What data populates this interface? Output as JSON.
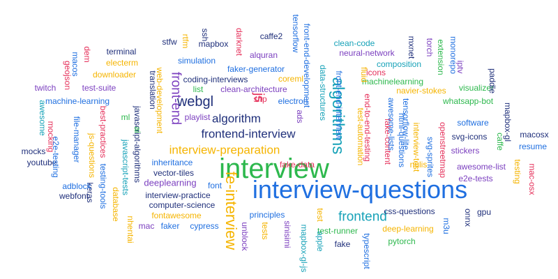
{
  "colors": {
    "navy": "#1f2f7a",
    "green": "#2db84d",
    "red": "#e5305a",
    "orange": "#f5b400",
    "teal": "#17a2b8",
    "purple": "#7b3fbf",
    "blue": "#1f6fe0",
    "darkred": "#c0392b"
  },
  "words": [
    {
      "text": "interview-questions",
      "color": "blue"
    },
    {
      "text": "interview",
      "color": "green"
    },
    {
      "text": "algorithms",
      "color": "teal"
    },
    {
      "text": "fe-interview",
      "color": "orange"
    },
    {
      "text": "frontend-interview",
      "color": "navy"
    },
    {
      "text": "interview-preparation",
      "color": "orange"
    },
    {
      "text": "algorithm",
      "color": "navy"
    },
    {
      "text": "front-end",
      "color": "purple"
    },
    {
      "text": "frontend",
      "color": "teal"
    },
    {
      "text": "webgl",
      "color": "navy"
    },
    {
      "text": "js",
      "color": "red"
    },
    {
      "text": "deeplearning",
      "color": "purple"
    },
    {
      "text": "data-structures",
      "color": "teal"
    },
    {
      "text": "front-end-development",
      "color": "blue"
    },
    {
      "text": "end-to-end-testing",
      "color": "red"
    },
    {
      "text": "test-automation",
      "color": "orange"
    },
    {
      "text": "awesome-list",
      "color": "purple"
    },
    {
      "text": "whatsapp-bot",
      "color": "green"
    },
    {
      "text": "visualizer",
      "color": "green"
    },
    {
      "text": "navier-stokes",
      "color": "orange"
    },
    {
      "text": "machinelearning",
      "color": "green"
    },
    {
      "text": "composition",
      "color": "teal"
    },
    {
      "text": "neural-network",
      "color": "purple"
    },
    {
      "text": "clean-code",
      "color": "teal"
    },
    {
      "text": "mxnet",
      "color": "navy"
    },
    {
      "text": "torch",
      "color": "purple"
    },
    {
      "text": "monorepo",
      "color": "blue"
    },
    {
      "text": "extension",
      "color": "green"
    },
    {
      "text": "iptv",
      "color": "purple"
    },
    {
      "text": "paddle",
      "color": "navy"
    },
    {
      "text": "mapbox-gl",
      "color": "navy"
    },
    {
      "text": "macosx",
      "color": "navy"
    },
    {
      "text": "resume",
      "color": "blue"
    },
    {
      "text": "caffe",
      "color": "green"
    },
    {
      "text": "testing",
      "color": "orange"
    },
    {
      "text": "mac-osx",
      "color": "red"
    },
    {
      "text": "e2e-tests",
      "color": "purple"
    },
    {
      "text": "stickers",
      "color": "purple"
    },
    {
      "text": "svg-icons",
      "color": "navy"
    },
    {
      "text": "software",
      "color": "blue"
    },
    {
      "text": "nulis",
      "color": "orange"
    },
    {
      "text": "gpu",
      "color": "navy"
    },
    {
      "text": "onnx",
      "color": "navy"
    },
    {
      "text": "m3u",
      "color": "blue"
    },
    {
      "text": "css-questions",
      "color": "navy"
    },
    {
      "text": "deep-learning",
      "color": "orange"
    },
    {
      "text": "pytorch",
      "color": "green"
    },
    {
      "text": "typescript",
      "color": "blue"
    },
    {
      "text": "fake",
      "color": "navy"
    },
    {
      "text": "test-runner",
      "color": "green"
    },
    {
      "text": "apple",
      "color": "teal"
    },
    {
      "text": "mapbox-gl-js",
      "color": "teal"
    },
    {
      "text": "test",
      "color": "orange"
    },
    {
      "text": "sinisimi",
      "color": "purple"
    },
    {
      "text": "tests",
      "color": "orange"
    },
    {
      "text": "unblock",
      "color": "purple"
    },
    {
      "text": "principles",
      "color": "blue"
    },
    {
      "text": "fake-data",
      "color": "red"
    },
    {
      "text": "cypress",
      "color": "blue"
    },
    {
      "text": "faker",
      "color": "blue"
    },
    {
      "text": "mac",
      "color": "purple"
    },
    {
      "text": "fontawesome",
      "color": "orange"
    },
    {
      "text": "computer-science",
      "color": "navy"
    },
    {
      "text": "interview-practice",
      "color": "navy"
    },
    {
      "text": "vector-tiles",
      "color": "navy"
    },
    {
      "text": "inheritance",
      "color": "blue"
    },
    {
      "text": "font",
      "color": "blue"
    },
    {
      "text": "nhentai",
      "color": "orange"
    },
    {
      "text": "database",
      "color": "orange"
    },
    {
      "text": "testing-tools",
      "color": "blue"
    },
    {
      "text": "javascript-tests",
      "color": "teal"
    },
    {
      "text": "javascript-algorithms",
      "color": "navy"
    },
    {
      "text": "keras",
      "color": "navy"
    },
    {
      "text": "webfont",
      "color": "navy"
    },
    {
      "text": "adblock",
      "color": "blue"
    },
    {
      "text": "youtube",
      "color": "navy"
    },
    {
      "text": "mocks",
      "color": "navy"
    },
    {
      "text": "e2e-testing",
      "color": "blue"
    },
    {
      "text": "mocking",
      "color": "red"
    },
    {
      "text": "file-manager",
      "color": "blue"
    },
    {
      "text": "js-questions",
      "color": "orange"
    },
    {
      "text": "best-practices",
      "color": "red"
    },
    {
      "text": "awesome",
      "color": "teal"
    },
    {
      "text": "machine-learning",
      "color": "blue"
    },
    {
      "text": "twitch",
      "color": "purple"
    },
    {
      "text": "geojson",
      "color": "red"
    },
    {
      "text": "macos",
      "color": "blue"
    },
    {
      "text": "dem",
      "color": "red"
    },
    {
      "text": "terminal",
      "color": "navy"
    },
    {
      "text": "electerm",
      "color": "orange"
    },
    {
      "text": "downloader",
      "color": "orange"
    },
    {
      "text": "test-suite",
      "color": "purple"
    },
    {
      "text": "ml",
      "color": "green"
    },
    {
      "text": "ai",
      "color": "green"
    },
    {
      "text": "translation",
      "color": "navy"
    },
    {
      "text": "web-development",
      "color": "orange"
    },
    {
      "text": "stfw",
      "color": "navy"
    },
    {
      "text": "rtfm",
      "color": "orange"
    },
    {
      "text": "ssh",
      "color": "navy"
    },
    {
      "text": "mapbox",
      "color": "navy"
    },
    {
      "text": "darknet",
      "color": "red"
    },
    {
      "text": "caffe2",
      "color": "navy"
    },
    {
      "text": "tensorflow",
      "color": "blue"
    },
    {
      "text": "alquran",
      "color": "purple"
    },
    {
      "text": "simulation",
      "color": "blue"
    },
    {
      "text": "faker-generator",
      "color": "blue"
    },
    {
      "text": "coreml",
      "color": "orange"
    },
    {
      "text": "coding-interviews",
      "color": "navy"
    },
    {
      "text": "list",
      "color": "green"
    },
    {
      "text": "clean-architecture",
      "color": "purple"
    },
    {
      "text": "sftp",
      "color": "red"
    },
    {
      "text": "electron",
      "color": "blue"
    },
    {
      "text": "playlist",
      "color": "purple"
    },
    {
      "text": "ads",
      "color": "purple"
    },
    {
      "text": "fluid",
      "color": "orange"
    },
    {
      "text": "icons",
      "color": "red"
    },
    {
      "text": "front-end-interview",
      "color": "blue"
    },
    {
      "text": "fake-content",
      "color": "red"
    },
    {
      "text": "interview-test",
      "color": "orange"
    },
    {
      "text": "svg-sprites",
      "color": "blue"
    },
    {
      "text": "openstreetmap",
      "color": "red"
    },
    {
      "text": "html-questions",
      "color": "blue"
    },
    {
      "text": "awesome-lists",
      "color": "blue"
    },
    {
      "text": "tensorflow-lite",
      "color": "blue"
    }
  ]
}
